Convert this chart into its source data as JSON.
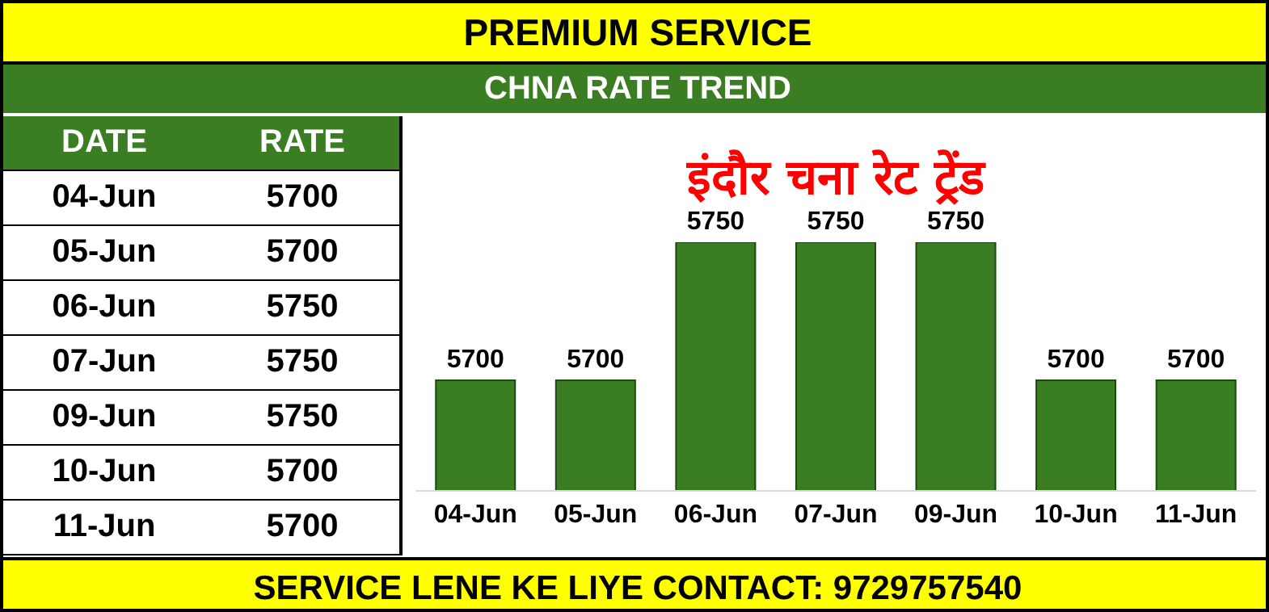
{
  "chart_data": {
    "type": "bar",
    "title": "इंदौर चना रेट ट्रेंड",
    "annotations": [
      "PREMIUM SERVICE",
      "CHNA RATE TREND",
      "DATE",
      "RATE",
      "SERVICE LENE KE LIYE CONTACT: 9729757540"
    ],
    "categories": [
      "04-Jun",
      "05-Jun",
      "06-Jun",
      "07-Jun",
      "09-Jun",
      "10-Jun",
      "11-Jun"
    ],
    "values": [
      5700,
      5700,
      5750,
      5750,
      5750,
      5700,
      5700
    ],
    "value_labels": [
      "5700",
      "5700",
      "5750",
      "5750",
      "5750",
      "5700",
      "5700"
    ],
    "color": "#3b7d23",
    "ylim": [
      5660,
      5750
    ],
    "tick_labels": "x",
    "grid": false,
    "legend": false
  }
}
